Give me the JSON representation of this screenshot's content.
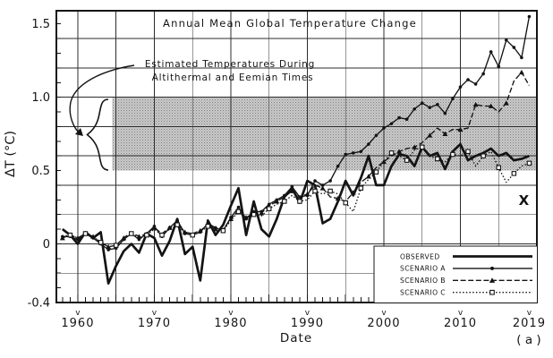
{
  "colors": {
    "ink": "#161616",
    "grid": "#2e2e2e",
    "band_base": "#cccccc",
    "band_dot1": "#7f7f7f",
    "band_dot2": "#9a9a9a",
    "red_x": "#e31b17",
    "background": "#ffffff"
  },
  "chart_data": {
    "type": "line",
    "title": "Annual  Mean  Global  Temperature  Change",
    "xlabel": "Date",
    "ylabel": "ΔT (°C)",
    "corner_label": "( a )",
    "xlim": [
      1957.2,
      2020.0
    ],
    "ylim": [
      -0.4,
      1.59
    ],
    "grid": {
      "x_interval_years": 5,
      "y_interval": 0.2,
      "grid_on": true
    },
    "x_ticks": [
      1960,
      1970,
      1980,
      1990,
      2000,
      2010,
      2019
    ],
    "x_tick_labels": [
      "1960",
      "1970",
      "1980",
      "1990",
      "2000",
      "2010",
      "2019"
    ],
    "x_tick_v_glyph": "v",
    "y_tick_values": [
      1.5,
      1.0,
      0.5,
      0,
      -0.4
    ],
    "y_tick_labels": [
      "1.5",
      "1.0",
      "0.5",
      "0",
      "-0.4"
    ],
    "shaded_band": {
      "label_line1": "Estimated  Temperatures  During",
      "label_line2": "Altithermal  and  Eemian  Times",
      "y_from": 0.5,
      "y_to": 1.0,
      "x_start_year": 1964.5
    },
    "years": [
      1958,
      1959,
      1960,
      1961,
      1962,
      1963,
      1964,
      1965,
      1966,
      1967,
      1968,
      1969,
      1970,
      1971,
      1972,
      1973,
      1974,
      1975,
      1976,
      1977,
      1978,
      1979,
      1980,
      1981,
      1982,
      1983,
      1984,
      1985,
      1986,
      1987,
      1988,
      1989,
      1990,
      1991,
      1992,
      1993,
      1994,
      1995,
      1996,
      1997,
      1998,
      1999,
      2000,
      2001,
      2002,
      2003,
      2004,
      2005,
      2006,
      2007,
      2008,
      2009,
      2010,
      2011,
      2012,
      2013,
      2014,
      2015,
      2016,
      2017,
      2018,
      2019
    ],
    "series": [
      {
        "name": "OBSERVED",
        "style": "solid-thick",
        "marker": "none",
        "values": [
          0.1,
          0.06,
          0.0,
          0.08,
          0.04,
          0.08,
          -0.27,
          -0.15,
          -0.05,
          0.0,
          -0.06,
          0.07,
          0.04,
          -0.08,
          0.02,
          0.17,
          -0.07,
          -0.02,
          -0.25,
          0.16,
          0.06,
          0.13,
          0.26,
          0.38,
          0.06,
          0.29,
          0.1,
          0.05,
          0.17,
          0.32,
          0.38,
          0.28,
          0.43,
          0.4,
          0.14,
          0.17,
          0.29,
          0.43,
          0.33,
          0.45,
          0.6,
          0.4,
          0.4,
          0.53,
          0.61,
          0.6,
          0.53,
          0.66,
          0.6,
          0.62,
          0.51,
          0.63,
          0.68,
          0.57,
          0.6,
          0.62,
          0.65,
          0.6,
          0.62,
          0.57,
          0.58,
          0.6
        ]
      },
      {
        "name": "SCENARIO A",
        "style": "solid",
        "marker": "circle",
        "values": [
          0.05,
          0.05,
          0.03,
          0.07,
          0.04,
          0.0,
          -0.04,
          -0.03,
          0.03,
          0.07,
          0.03,
          0.07,
          0.12,
          0.05,
          0.11,
          0.16,
          0.07,
          0.06,
          0.08,
          0.14,
          0.11,
          0.09,
          0.18,
          0.25,
          0.17,
          0.22,
          0.22,
          0.27,
          0.3,
          0.33,
          0.39,
          0.32,
          0.33,
          0.43,
          0.4,
          0.43,
          0.53,
          0.61,
          0.62,
          0.63,
          0.68,
          0.74,
          0.79,
          0.82,
          0.86,
          0.85,
          0.92,
          0.96,
          0.93,
          0.95,
          0.89,
          0.99,
          1.07,
          1.12,
          1.09,
          1.16,
          1.31,
          1.21,
          1.39,
          1.34,
          1.27,
          1.55
        ]
      },
      {
        "name": "SCENARIO B",
        "style": "dashed",
        "marker": "triangle",
        "values": [
          0.04,
          0.06,
          0.04,
          0.07,
          0.05,
          0.01,
          -0.02,
          -0.01,
          0.04,
          0.08,
          0.05,
          0.07,
          0.11,
          0.07,
          0.11,
          0.14,
          0.08,
          0.07,
          0.09,
          0.13,
          0.1,
          0.1,
          0.17,
          0.23,
          0.18,
          0.21,
          0.21,
          0.26,
          0.29,
          0.32,
          0.36,
          0.32,
          0.34,
          0.4,
          0.38,
          0.32,
          0.31,
          0.29,
          0.35,
          0.42,
          0.46,
          0.52,
          0.56,
          0.6,
          0.63,
          0.65,
          0.66,
          0.69,
          0.74,
          0.79,
          0.75,
          0.78,
          0.78,
          0.79,
          0.95,
          0.94,
          0.94,
          0.9,
          0.96,
          1.11,
          1.17,
          1.08
        ]
      },
      {
        "name": "SCENARIO C",
        "style": "dotted",
        "marker": "square",
        "values": [
          0.05,
          0.06,
          0.04,
          0.07,
          0.05,
          0.01,
          -0.02,
          -0.01,
          0.04,
          0.07,
          0.04,
          0.06,
          0.1,
          0.06,
          0.1,
          0.13,
          0.07,
          0.06,
          0.08,
          0.12,
          0.09,
          0.09,
          0.16,
          0.22,
          0.17,
          0.2,
          0.19,
          0.24,
          0.27,
          0.29,
          0.33,
          0.29,
          0.3,
          0.36,
          0.34,
          0.36,
          0.34,
          0.28,
          0.22,
          0.38,
          0.44,
          0.49,
          0.56,
          0.62,
          0.6,
          0.57,
          0.64,
          0.66,
          0.6,
          0.58,
          0.56,
          0.61,
          0.6,
          0.63,
          0.53,
          0.6,
          0.63,
          0.52,
          0.42,
          0.48,
          0.53,
          0.55
        ]
      }
    ],
    "legend": {
      "position": "bottom-right"
    },
    "annotation_x": {
      "glyph": "X",
      "year": 2018.3,
      "value": 0.3
    }
  }
}
